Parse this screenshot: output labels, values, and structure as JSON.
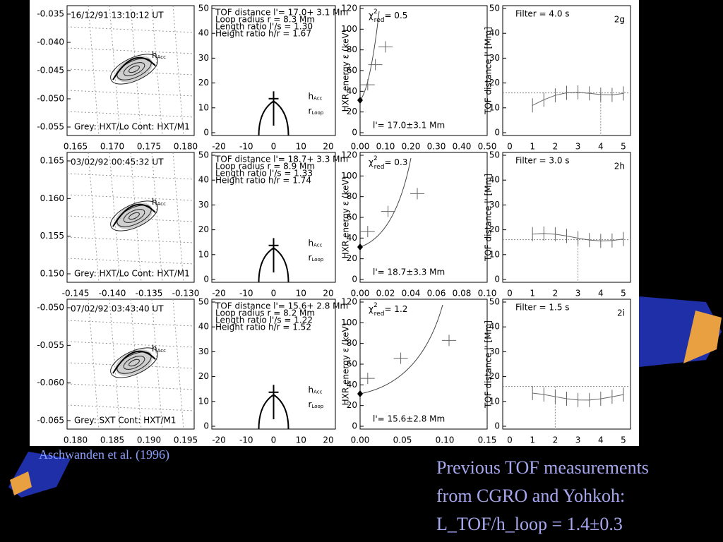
{
  "figure": {
    "h_label": "h",
    "h_sub": "Acc",
    "r_label": "r",
    "r_sub": "Loop",
    "chi": "χ",
    "chi_sup": "2",
    "chi_sub": "red",
    "loop_xticks": [
      -20,
      -10,
      0,
      10,
      20
    ],
    "loop_yticks": [
      50,
      40,
      30,
      20,
      10,
      0
    ],
    "energy_yticks": [
      120,
      100,
      80,
      60,
      40,
      20,
      0
    ],
    "energy_axis": "HXR energy ε (keV)",
    "tof_yticks": [
      50,
      40,
      30,
      20,
      10,
      0
    ],
    "tof_xticks": [
      0,
      1,
      2,
      3,
      4,
      5
    ],
    "tof_axis": "TOF distance l' [Mm]",
    "rows": [
      {
        "label": "2g",
        "time": "16/12/91 13:10:12 UT",
        "image_yticks": [
          "-0.035",
          "-0.040",
          "-0.045",
          "-0.050",
          "-0.055"
        ],
        "image_xticks": [
          "0.165",
          "0.170",
          "0.175",
          "0.180"
        ],
        "caption": "Grey: HXT/Lo  Cont: HXT/M1",
        "info": [
          "TOF distance l'= 17.0+ 3.1 Mm",
          "Loop radius r = 8.3 Mm",
          "Length ratio l'/s = 1.30",
          "Height ratio h/r = 1.67"
        ],
        "chi_value": "= 0.5",
        "energy_xticks": [
          "0.00",
          "0.10",
          "0.20",
          "0.30",
          "0.40",
          "0.50"
        ],
        "result": "l'= 17.0±3.1 Mm",
        "filter": "Filter =  4.0 s"
      },
      {
        "label": "2h",
        "time": "03/02/92  00:45:32 UT",
        "image_yticks": [
          "0.165",
          "0.160",
          "0.155",
          "0.150"
        ],
        "image_xticks": [
          "-0.145",
          "-0.140",
          "-0.135",
          "-0.130"
        ],
        "caption": "Grey: HXT/Lo  Cont: HXT/M1",
        "info": [
          "TOF distance l'= 18.7+ 3.3 Mm",
          "Loop radius r = 8.9 Mm",
          "Length ratio l'/s = 1.33",
          "Height ratio h/r = 1.74"
        ],
        "chi_value": "= 0.3",
        "energy_xticks": [
          "0.00",
          "0.02",
          "0.04",
          "0.06",
          "0.08",
          "0.10"
        ],
        "result": "l'= 18.7±3.3 Mm",
        "filter": "Filter =  3.0 s"
      },
      {
        "label": "2i",
        "time": "07/02/92  03:43:40 UT",
        "image_yticks": [
          "-0.050",
          "-0.055",
          "-0.060",
          "-0.065"
        ],
        "image_xticks": [
          "0.180",
          "0.185",
          "0.190",
          "0.195"
        ],
        "caption": "Grey: SXT  Cont: HXT/M1",
        "info": [
          "TOF distance l'= 15.6+ 2.8 Mm",
          "Loop radius r = 8.2 Mm",
          "Length ratio l'/s = 1.22",
          "Height ratio h/r = 1.52"
        ],
        "chi_value": "= 1.2",
        "energy_xticks": [
          "0.00",
          "0.05",
          "0.10",
          "0.15"
        ],
        "result": "l'= 15.6±2.8 Mm",
        "filter": "Filter =  1.5 s"
      }
    ]
  },
  "slide": {
    "source": "Aschwanden et al. (1996)",
    "note": [
      "Previous TOF measurements",
      "from CGRO and Yohkoh:",
      "L_TOF/h_loop = 1.4±0.3"
    ]
  }
}
